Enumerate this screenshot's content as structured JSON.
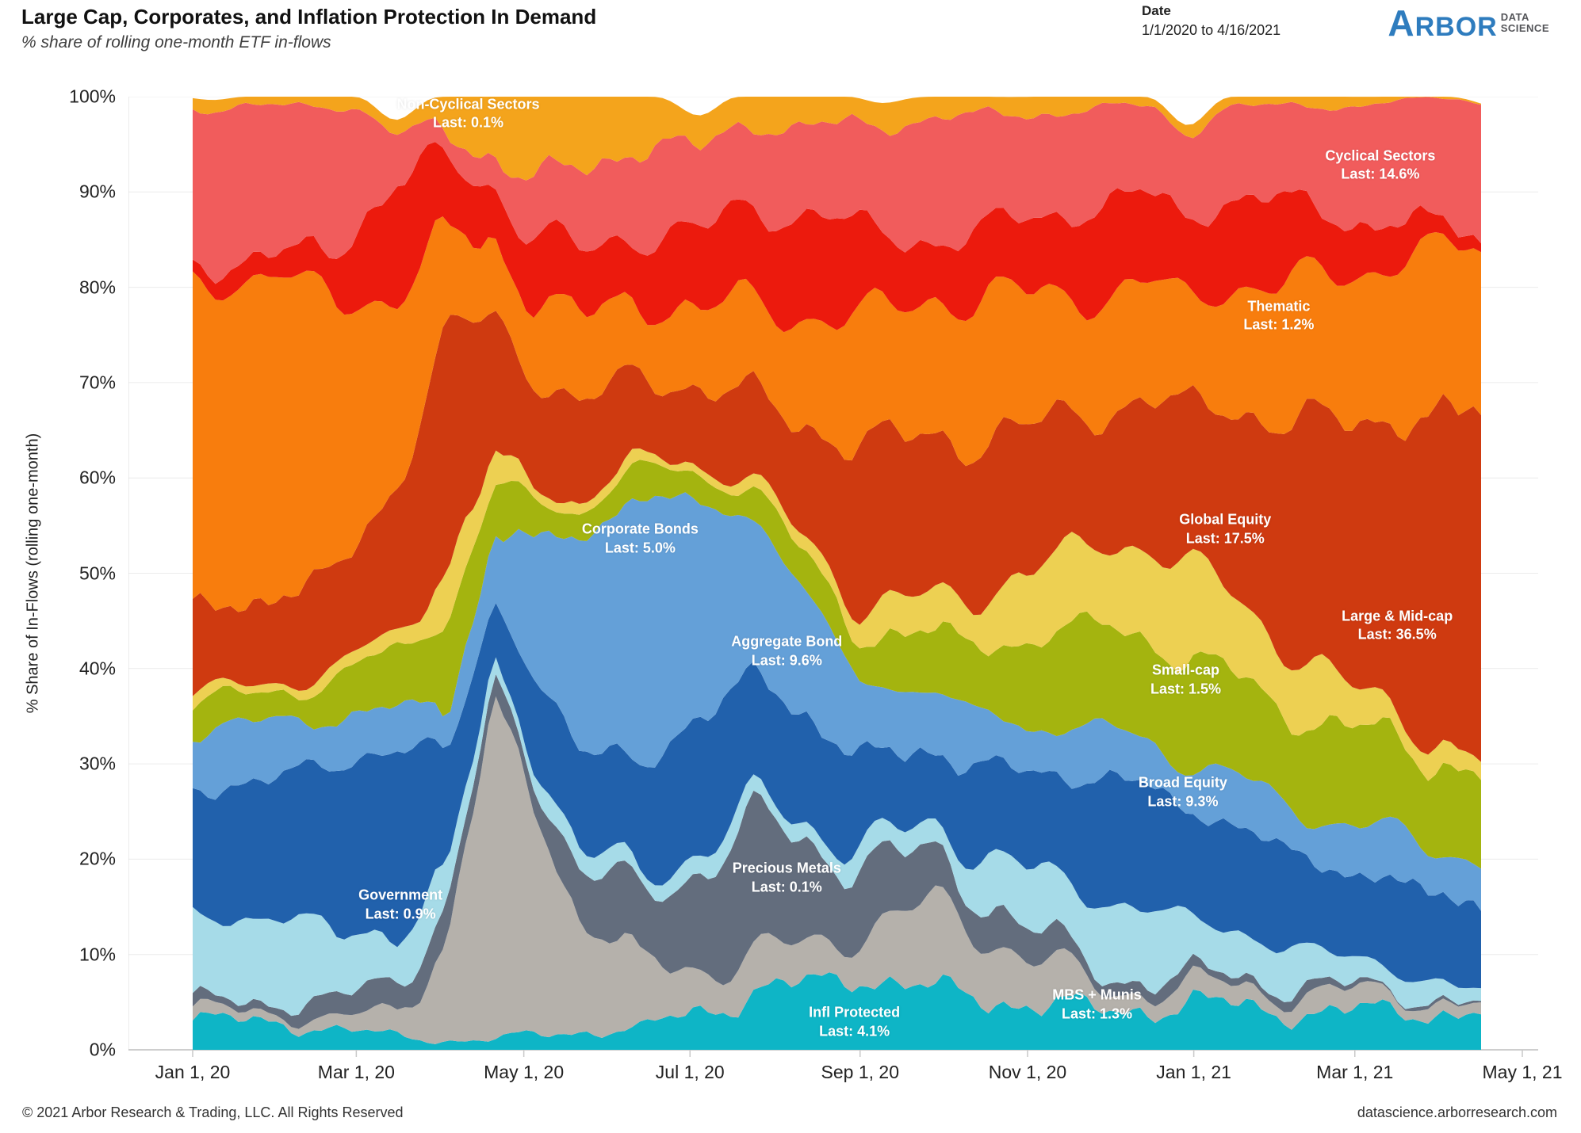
{
  "header": {
    "title": "Large Cap, Corporates, and Inflation Protection In Demand",
    "subtitle": "% share of rolling one-month ETF in-flows",
    "date_label": "Date",
    "date_value": "1/1/2020 to 4/16/2021",
    "logo_brand_initial": "A",
    "logo_brand_rest": "RBOR",
    "logo_suffix_top": "DATA",
    "logo_suffix_bottom": "SCIENCE"
  },
  "footer": {
    "left": "© 2021 Arbor Research & Trading, LLC. All Rights Reserved",
    "right": "datascience.arborresearch.com"
  },
  "chart_data": {
    "type": "area",
    "stacked": true,
    "title": "Large Cap, Corporates, and Inflation Protection In Demand",
    "ylabel": "% Share of In-Flows (rolling one-month)",
    "ylim": [
      0,
      100
    ],
    "grid": true,
    "legend_position": "inline-labels",
    "y_ticks": [
      "0%",
      "10%",
      "20%",
      "30%",
      "40%",
      "50%",
      "60%",
      "70%",
      "80%",
      "90%",
      "100%"
    ],
    "x_ticks": [
      {
        "label": "Jan 1, 20",
        "t": 0.0
      },
      {
        "label": "Mar 1, 20",
        "t": 0.127
      },
      {
        "label": "May 1, 20",
        "t": 0.257
      },
      {
        "label": "Jul 1, 20",
        "t": 0.386
      },
      {
        "label": "Sep 1, 20",
        "t": 0.518
      },
      {
        "label": "Nov 1, 20",
        "t": 0.648
      },
      {
        "label": "Jan 1, 21",
        "t": 0.777
      },
      {
        "label": "Mar 1, 21",
        "t": 0.902
      },
      {
        "label": "May 1, 21",
        "t": 1.032
      }
    ],
    "keyframe_t": [
      0,
      0.066,
      0.113,
      0.159,
      0.197,
      0.234,
      0.257,
      0.299,
      0.346,
      0.386,
      0.439,
      0.486,
      0.518,
      0.579,
      0.648,
      0.71,
      0.777,
      0.843,
      0.902,
      0.953,
      1.0
    ],
    "series": [
      {
        "name": "Infl Protected",
        "last": "4.1%",
        "color": "#0eb5c6",
        "label_line1": "Infl Protected",
        "label_line2": "Last: 4.1%",
        "label_x": 0.515,
        "label_y": 2.9,
        "values": [
          3,
          3,
          2,
          1.5,
          1,
          1,
          1.5,
          2,
          2,
          4,
          6,
          7,
          8,
          6,
          5,
          4,
          5,
          4,
          4,
          4,
          4.1
        ]
      },
      {
        "name": "Government",
        "last": "0.9%",
        "color": "#b5b1ab",
        "label_line1": "Government",
        "label_line2": "Last: 0.9%",
        "label_x": 0.193,
        "label_y": 15.2,
        "values": [
          1,
          1,
          1,
          3,
          10,
          35,
          28,
          12,
          7,
          5,
          4,
          4,
          5,
          9,
          5,
          2,
          2,
          2,
          2,
          1.5,
          0.9
        ]
      },
      {
        "name": "Precious Metals",
        "last": "0.1%",
        "color": "#636d7d",
        "label_line1": "Precious Metals",
        "label_line2": "Last: 0.1%",
        "label_x": 0.467,
        "label_y": 18.0,
        "values": [
          1,
          1,
          2,
          4,
          3,
          2,
          3,
          5,
          7,
          10,
          14,
          10,
          7,
          5,
          3,
          1.5,
          1,
          1,
          0.5,
          0.3,
          0.1
        ]
      },
      {
        "name": "MBS + Munis",
        "last": "1.3%",
        "color": "#a6dbe8",
        "label_line1": "MBS + Munis",
        "label_line2": "Last: 1.3%",
        "label_x": 0.687,
        "label_y": 4.7,
        "values": [
          9,
          9,
          7,
          5,
          4,
          2,
          2,
          2,
          2,
          2,
          2,
          2,
          2,
          3,
          6,
          8,
          6,
          4,
          3,
          2,
          1.3
        ]
      },
      {
        "name": "Aggregate Bond",
        "last": "9.6%",
        "color": "#2161ac",
        "label_line1": "Aggregate Bond",
        "label_line2": "Last: 9.6%",
        "label_x": 0.467,
        "label_y": 41.8,
        "values": [
          14,
          14,
          18,
          20,
          12,
          7,
          8,
          10,
          12,
          14,
          13,
          11,
          9,
          8,
          10,
          13,
          12,
          10,
          9,
          9,
          9.6
        ]
      },
      {
        "name": "Corporate Bonds",
        "last": "5.0%",
        "color": "#64a0d8",
        "label_line1": "Corporate Bonds",
        "label_line2": "Last: 5.0%",
        "label_x": 0.363,
        "label_y": 53.6,
        "values": [
          6,
          6,
          5,
          4,
          5,
          7,
          12,
          22,
          28,
          24,
          16,
          12,
          8,
          6,
          5,
          5,
          5,
          5,
          5,
          5,
          5
        ]
      },
      {
        "name": "Broad Equity",
        "last": "9.3%",
        "color": "#a4b40f",
        "label_line1": "Broad Equity",
        "label_line2": "Last: 9.3%",
        "label_x": 0.748,
        "label_y": 27.0,
        "values": [
          3,
          3,
          4,
          6,
          10,
          5,
          4,
          3,
          3,
          3,
          3,
          4,
          5,
          6,
          9,
          11,
          11,
          10,
          10,
          9.5,
          9.3
        ]
      },
      {
        "name": "Small-cap",
        "last": "1.5%",
        "color": "#edd052",
        "label_line1": "Small-cap",
        "label_line2": "Last: 1.5%",
        "label_x": 0.75,
        "label_y": 38.8,
        "values": [
          1,
          1,
          1,
          2,
          5,
          3,
          2,
          1,
          1,
          1,
          1,
          2,
          3,
          4,
          7,
          9,
          10,
          7,
          4,
          2.5,
          1.5
        ]
      },
      {
        "name": "Large & Mid-cap",
        "last": "36.5%",
        "color": "#cf3a10",
        "label_line1": "Large & Mid-cap",
        "label_line2": "Last: 36.5%",
        "label_x": 0.9,
        "label_y": 44.5,
        "values": [
          9,
          9,
          10,
          16,
          25,
          15,
          12,
          10,
          9,
          8,
          9,
          13,
          17,
          17,
          15,
          14,
          17,
          23,
          28,
          33,
          36.5
        ]
      },
      {
        "name": "Global Equity",
        "last": "17.5%",
        "color": "#f87d0d",
        "label_line1": "Global Equity",
        "label_line2": "Last: 17.5%",
        "label_x": 0.778,
        "label_y": 54.6,
        "values": [
          34,
          34,
          28,
          20,
          10,
          8,
          8,
          9,
          8,
          8,
          10,
          12,
          13,
          15,
          14,
          12,
          12,
          14,
          16,
          17,
          17.5
        ]
      },
      {
        "name": "Thematic",
        "last": "1.2%",
        "color": "#ec1a0d",
        "label_line1": "Thematic",
        "label_line2": "Last: 1.2%",
        "label_x": 0.816,
        "label_y": 77.0,
        "values": [
          2,
          2,
          6,
          12,
          8,
          6,
          6,
          7,
          7,
          8,
          10,
          11,
          9,
          6,
          8,
          9.5,
          9,
          9,
          5.5,
          3,
          1.2
        ]
      },
      {
        "name": "Cyclical Sectors",
        "last": "14.6%",
        "color": "#f15c5c",
        "label_line1": "Cyclical Sectors",
        "label_line2": "Last: 14.6%",
        "label_x": 0.888,
        "label_y": 92.8,
        "values": [
          16,
          16,
          15,
          5,
          3,
          3,
          5,
          9,
          9,
          9,
          9,
          9,
          11,
          13,
          11,
          10,
          9,
          10,
          12,
          13,
          14.6
        ]
      },
      {
        "name": "Non-Cyclical Sectors",
        "last": "0.1%",
        "color": "#f4a41c",
        "label_line1": "Non-Cyclical Sectors",
        "label_line2": "Last: 0.1%",
        "label_x": 0.241,
        "label_y": 98.2,
        "values": [
          1,
          1,
          1,
          1.5,
          4,
          6,
          8.5,
          8,
          5,
          4,
          3,
          3,
          3,
          2,
          2,
          1,
          1,
          1,
          1,
          0.2,
          0.1
        ]
      }
    ]
  }
}
